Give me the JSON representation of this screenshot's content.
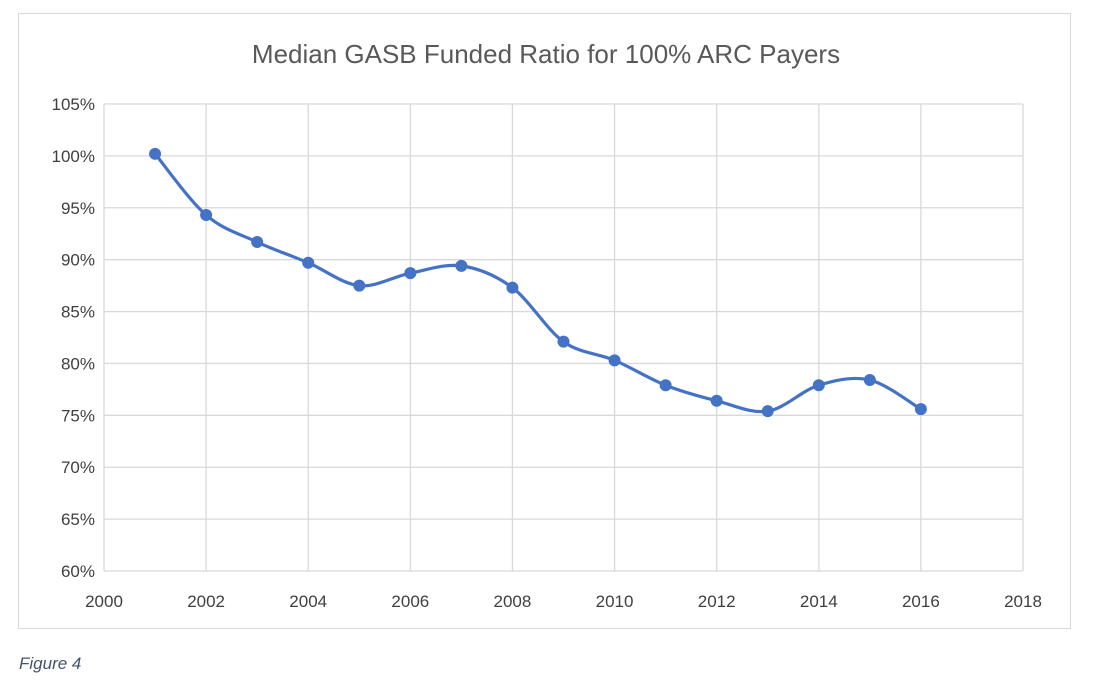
{
  "chart_data": {
    "type": "line",
    "title": "Median GASB Funded Ratio for 100% ARC Payers",
    "xlabel": "",
    "ylabel": "",
    "xlim": [
      2000,
      2018
    ],
    "ylim": [
      0.6,
      1.05
    ],
    "x_ticks": [
      2000,
      2002,
      2004,
      2006,
      2008,
      2010,
      2012,
      2014,
      2016,
      2018
    ],
    "x_tick_labels": [
      "2000",
      "2002",
      "2004",
      "2006",
      "2008",
      "2010",
      "2012",
      "2014",
      "2016",
      "2018"
    ],
    "y_ticks": [
      0.6,
      0.65,
      0.7,
      0.75,
      0.8,
      0.85,
      0.9,
      0.95,
      1.0,
      1.05
    ],
    "y_tick_labels": [
      "60%",
      "65%",
      "70%",
      "75%",
      "80%",
      "85%",
      "90%",
      "95%",
      "100%",
      "105%"
    ],
    "grid": true,
    "legend": "none",
    "smoothed": true,
    "series": [
      {
        "color": "#4472c4",
        "x": [
          2001,
          2002,
          2003,
          2004,
          2005,
          2006,
          2007,
          2008,
          2009,
          2010,
          2011,
          2012,
          2013,
          2014,
          2015,
          2016
        ],
        "y": [
          1.002,
          0.943,
          0.917,
          0.897,
          0.875,
          0.887,
          0.894,
          0.873,
          0.821,
          0.803,
          0.779,
          0.764,
          0.754,
          0.779,
          0.784,
          0.756
        ]
      }
    ]
  },
  "caption": "Figure 4",
  "colors": {
    "line": "#4472c4",
    "grid": "#d9d9d9",
    "frame": "#d9d9d9",
    "title": "#595959",
    "tick": "#404040",
    "caption": "#44546a"
  }
}
